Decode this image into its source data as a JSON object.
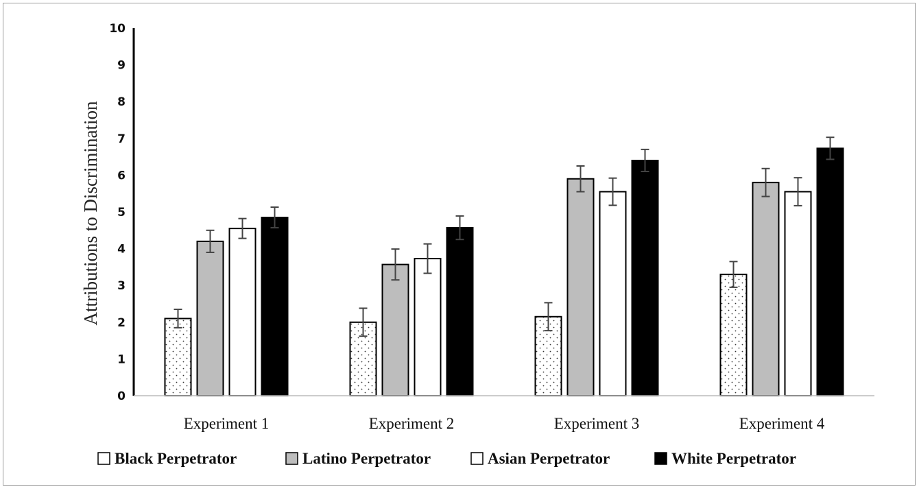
{
  "chart_data": {
    "type": "bar",
    "title": "",
    "xlabel": "",
    "ylabel": "Attributions to Discrimination",
    "ylim": [
      0,
      10
    ],
    "yticks": [
      "0",
      "1",
      "2",
      "3",
      "4",
      "5",
      "6",
      "7",
      "8",
      "9",
      "10"
    ],
    "grid": false,
    "legend_position": "bottom",
    "categories": [
      "Experiment 1",
      "Experiment 2",
      "Experiment 3",
      "Experiment 4"
    ],
    "series": [
      {
        "name": "Black Perpetrator",
        "fill": "dotted",
        "color": "#ffffff",
        "values": [
          2.1,
          2.0,
          2.15,
          3.3
        ],
        "errors": [
          0.25,
          0.38,
          0.38,
          0.35
        ]
      },
      {
        "name": "Latino Perpetrator",
        "fill": "solid",
        "color": "#bdbdbd",
        "values": [
          4.2,
          3.57,
          5.9,
          5.8
        ],
        "errors": [
          0.3,
          0.42,
          0.35,
          0.38
        ]
      },
      {
        "name": "Asian Perpetrator",
        "fill": "solid",
        "color": "#ffffff",
        "values": [
          4.55,
          3.73,
          5.55,
          5.55
        ],
        "errors": [
          0.27,
          0.4,
          0.37,
          0.38
        ]
      },
      {
        "name": "White Perpetrator",
        "fill": "solid",
        "color": "#000000",
        "values": [
          4.85,
          4.57,
          6.4,
          6.73
        ],
        "errors": [
          0.28,
          0.32,
          0.3,
          0.3
        ]
      }
    ]
  }
}
